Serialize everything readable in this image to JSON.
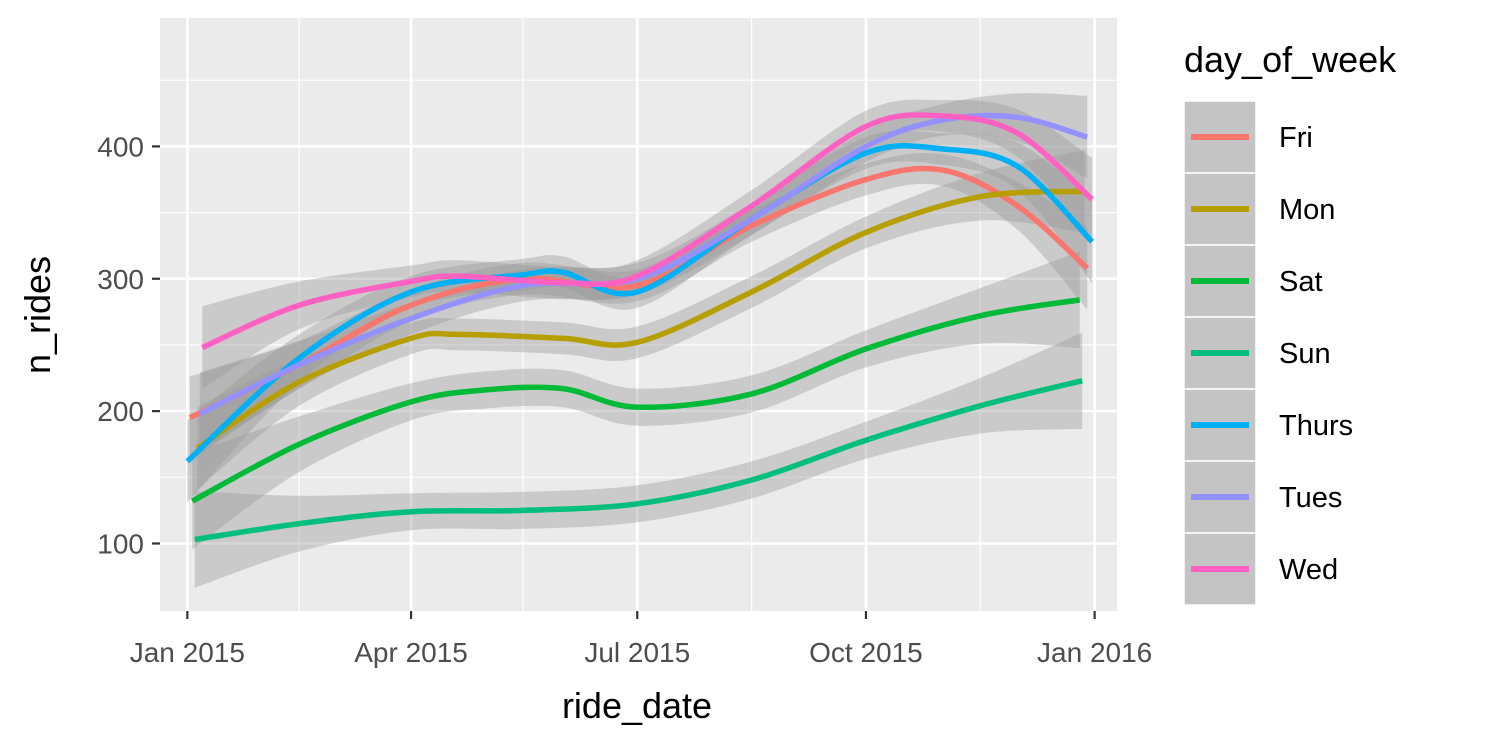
{
  "chart_data": {
    "type": "line",
    "xlabel": "ride_date",
    "ylabel": "n_rides",
    "x_ticks": [
      {
        "date": "2015-01-01",
        "label": "Jan 2015"
      },
      {
        "date": "2015-04-01",
        "label": "Apr 2015"
      },
      {
        "date": "2015-07-01",
        "label": "Jul 2015"
      },
      {
        "date": "2015-10-01",
        "label": "Oct 2015"
      },
      {
        "date": "2016-01-01",
        "label": "Jan 2016"
      }
    ],
    "x_minor_ticks": [
      "2015-02-15",
      "2015-05-16",
      "2015-08-16",
      "2015-11-16"
    ],
    "y_ticks": [
      100,
      200,
      300,
      400
    ],
    "y_minor_ticks": [
      150,
      250,
      350,
      450
    ],
    "xlim": [
      "2014-12-21",
      "2016-01-10"
    ],
    "ylim": [
      49,
      497
    ],
    "grid": true,
    "band": "95% confidence band (grey)",
    "legend": {
      "title": "day_of_week",
      "placement": "right"
    },
    "series": [
      {
        "name": "Fri",
        "color": "#F8766D",
        "band_width": 12,
        "points": [
          [
            "2015-01-02",
            195
          ],
          [
            "2015-02-15",
            235
          ],
          [
            "2015-04-01",
            280
          ],
          [
            "2015-05-16",
            300
          ],
          [
            "2015-07-01",
            295
          ],
          [
            "2015-08-16",
            340
          ],
          [
            "2015-10-01",
            375
          ],
          [
            "2015-11-01",
            382
          ],
          [
            "2015-12-01",
            355
          ],
          [
            "2015-12-29",
            308
          ]
        ]
      },
      {
        "name": "Mon",
        "color": "#B79F00",
        "band_width": 12,
        "points": [
          [
            "2015-01-05",
            172
          ],
          [
            "2015-02-15",
            222
          ],
          [
            "2015-04-01",
            255
          ],
          [
            "2015-04-20",
            258
          ],
          [
            "2015-06-01",
            255
          ],
          [
            "2015-07-01",
            252
          ],
          [
            "2015-08-16",
            290
          ],
          [
            "2015-10-01",
            335
          ],
          [
            "2015-11-16",
            362
          ],
          [
            "2015-12-28",
            366
          ]
        ]
      },
      {
        "name": "Sat",
        "color": "#00BA38",
        "band_width": 14,
        "points": [
          [
            "2015-01-03",
            132
          ],
          [
            "2015-02-15",
            175
          ],
          [
            "2015-04-01",
            207
          ],
          [
            "2015-05-01",
            216
          ],
          [
            "2015-06-01",
            217
          ],
          [
            "2015-07-01",
            203
          ],
          [
            "2015-08-16",
            213
          ],
          [
            "2015-10-01",
            247
          ],
          [
            "2015-11-16",
            272
          ],
          [
            "2015-12-26",
            284
          ]
        ]
      },
      {
        "name": "Sun",
        "color": "#00BF7D",
        "band_width": 14,
        "points": [
          [
            "2015-01-04",
            103
          ],
          [
            "2015-02-15",
            115
          ],
          [
            "2015-04-01",
            124
          ],
          [
            "2015-05-16",
            125
          ],
          [
            "2015-07-01",
            130
          ],
          [
            "2015-08-16",
            148
          ],
          [
            "2015-10-01",
            178
          ],
          [
            "2015-11-16",
            204
          ],
          [
            "2015-12-27",
            223
          ]
        ]
      },
      {
        "name": "Thurs",
        "color": "#00B0F6",
        "band_width": 12,
        "points": [
          [
            "2015-01-01",
            162
          ],
          [
            "2015-02-15",
            240
          ],
          [
            "2015-04-01",
            290
          ],
          [
            "2015-05-16",
            303
          ],
          [
            "2015-06-01",
            305
          ],
          [
            "2015-07-01",
            290
          ],
          [
            "2015-08-16",
            345
          ],
          [
            "2015-10-01",
            395
          ],
          [
            "2015-11-01",
            398
          ],
          [
            "2015-12-01",
            385
          ],
          [
            "2015-12-31",
            328
          ]
        ]
      },
      {
        "name": "Tues",
        "color": "#9590FF",
        "band_width": 12,
        "points": [
          [
            "2015-01-06",
            198
          ],
          [
            "2015-02-15",
            235
          ],
          [
            "2015-04-01",
            270
          ],
          [
            "2015-05-16",
            295
          ],
          [
            "2015-07-01",
            300
          ],
          [
            "2015-08-16",
            345
          ],
          [
            "2015-10-01",
            400
          ],
          [
            "2015-11-01",
            420
          ],
          [
            "2015-12-01",
            422
          ],
          [
            "2015-12-29",
            407
          ]
        ]
      },
      {
        "name": "Wed",
        "color": "#FF61C3",
        "band_width": 12,
        "points": [
          [
            "2015-01-07",
            248
          ],
          [
            "2015-02-15",
            280
          ],
          [
            "2015-04-01",
            298
          ],
          [
            "2015-04-20",
            302
          ],
          [
            "2015-06-01",
            297
          ],
          [
            "2015-07-01",
            302
          ],
          [
            "2015-08-16",
            355
          ],
          [
            "2015-10-01",
            415
          ],
          [
            "2015-11-01",
            423
          ],
          [
            "2015-12-01",
            410
          ],
          [
            "2015-12-31",
            360
          ]
        ]
      }
    ]
  }
}
